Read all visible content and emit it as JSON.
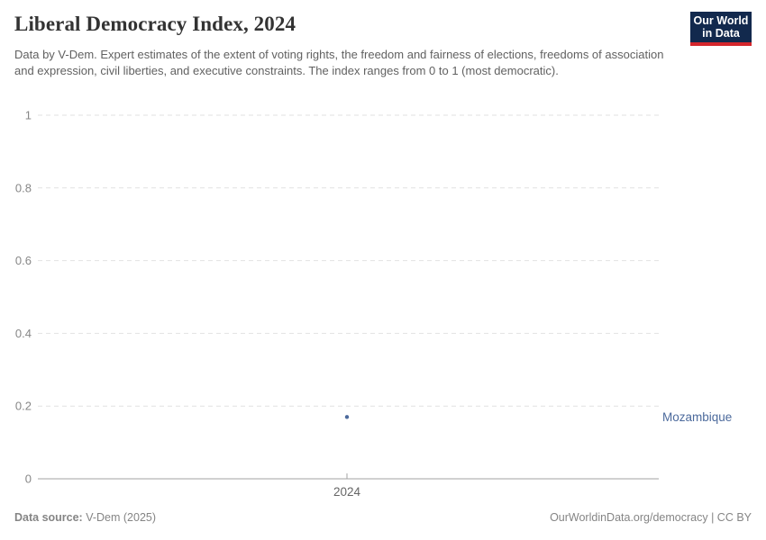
{
  "header": {
    "title": "Liberal Democracy Index, 2024",
    "subtitle": "Data by V-Dem. Expert estimates of the extent of voting rights, the freedom and fairness of elections, freedoms of association and expression, civil liberties, and executive constraints. The index ranges from 0 to 1 (most democratic).",
    "logo": {
      "line1": "Our World",
      "line2": "in Data",
      "bg_color": "#12294D",
      "accent_color": "#D4262C"
    }
  },
  "chart_data": {
    "type": "scatter",
    "title": "Liberal Democracy Index, 2024",
    "x": [
      2024
    ],
    "xtick_labels": [
      "2024"
    ],
    "series": [
      {
        "name": "Mozambique",
        "values": [
          0.17
        ],
        "color": "#4C6A9C"
      }
    ],
    "xlabel": "",
    "ylabel": "",
    "ylim": [
      0,
      1
    ],
    "yticks": [
      0,
      0.2,
      0.4,
      0.6,
      0.8,
      1
    ],
    "ytick_labels": [
      "0",
      "0.2",
      "0.4",
      "0.6",
      "0.8",
      "1"
    ],
    "grid": "horizontal-dashed",
    "legend_position": "right-of-point"
  },
  "colors": {
    "gridline": "#e2e2e2",
    "axis_line": "#a3a3a3",
    "ytick_label": "#878787",
    "xtick_label": "#666666",
    "series_blue": "#4C6A9C"
  },
  "footer": {
    "source_label": "Data source:",
    "source_value": " V-Dem (2025)",
    "credit": "OurWorldinData.org/democracy | CC BY"
  }
}
